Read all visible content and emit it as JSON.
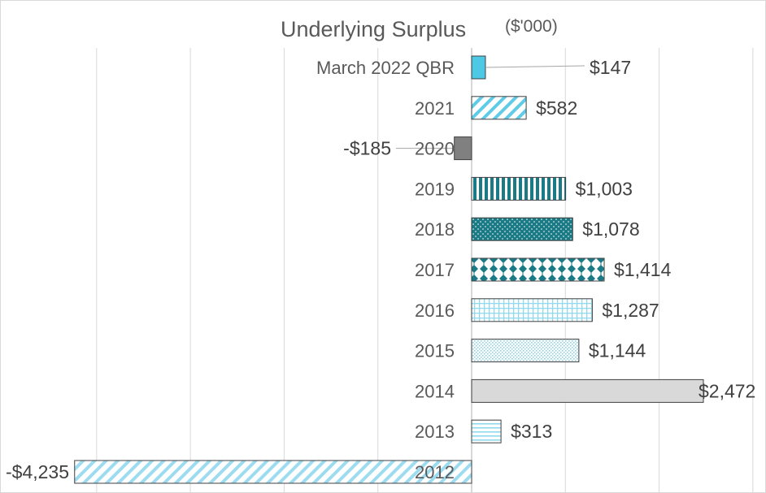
{
  "chart_data": {
    "type": "bar",
    "orientation": "horizontal",
    "title": "Underlying Surplus",
    "subtitle": "($'000)",
    "categories": [
      "March 2022 QBR",
      "2021",
      "2020",
      "2019",
      "2018",
      "2017",
      "2016",
      "2015",
      "2014",
      "2013",
      "2012"
    ],
    "values": [
      147,
      582,
      -185,
      1003,
      1078,
      1414,
      1287,
      1144,
      2472,
      313,
      -4235
    ],
    "value_labels": [
      "$147",
      "$582",
      "-$185",
      "$1,003",
      "$1,078",
      "$1,414",
      "$1,287",
      "$1,144",
      "$2,472",
      "$313",
      "-$4,235"
    ],
    "xlim": [
      -4500,
      3000
    ],
    "grid": true,
    "legend": "none",
    "bar_styles": [
      {
        "fill": "#4dc9e6",
        "pattern": "solid"
      },
      {
        "fill": "#5fcbe6",
        "pattern": "diagonal-wide"
      },
      {
        "fill": "#808080",
        "pattern": "solid"
      },
      {
        "fill": "#1a7a85",
        "pattern": "vertical-stripes"
      },
      {
        "fill": "#1a7a85",
        "pattern": "dotted"
      },
      {
        "fill": "#1a7a85",
        "pattern": "diamonds"
      },
      {
        "fill": "#8fdaee",
        "pattern": "grid"
      },
      {
        "fill": "#8fd3e3",
        "pattern": "fine-dots"
      },
      {
        "fill": "#d9d9d9",
        "pattern": "solid"
      },
      {
        "fill": "#8fdaee",
        "pattern": "horizontal-stripes"
      },
      {
        "fill": "#9ddcf0",
        "pattern": "diagonal-wide"
      }
    ],
    "colors": {
      "gridline": "#d9d9d9",
      "axis": "#bfbfbf",
      "bar_border": "#404040",
      "leader_line": "#a6a6a6"
    }
  }
}
